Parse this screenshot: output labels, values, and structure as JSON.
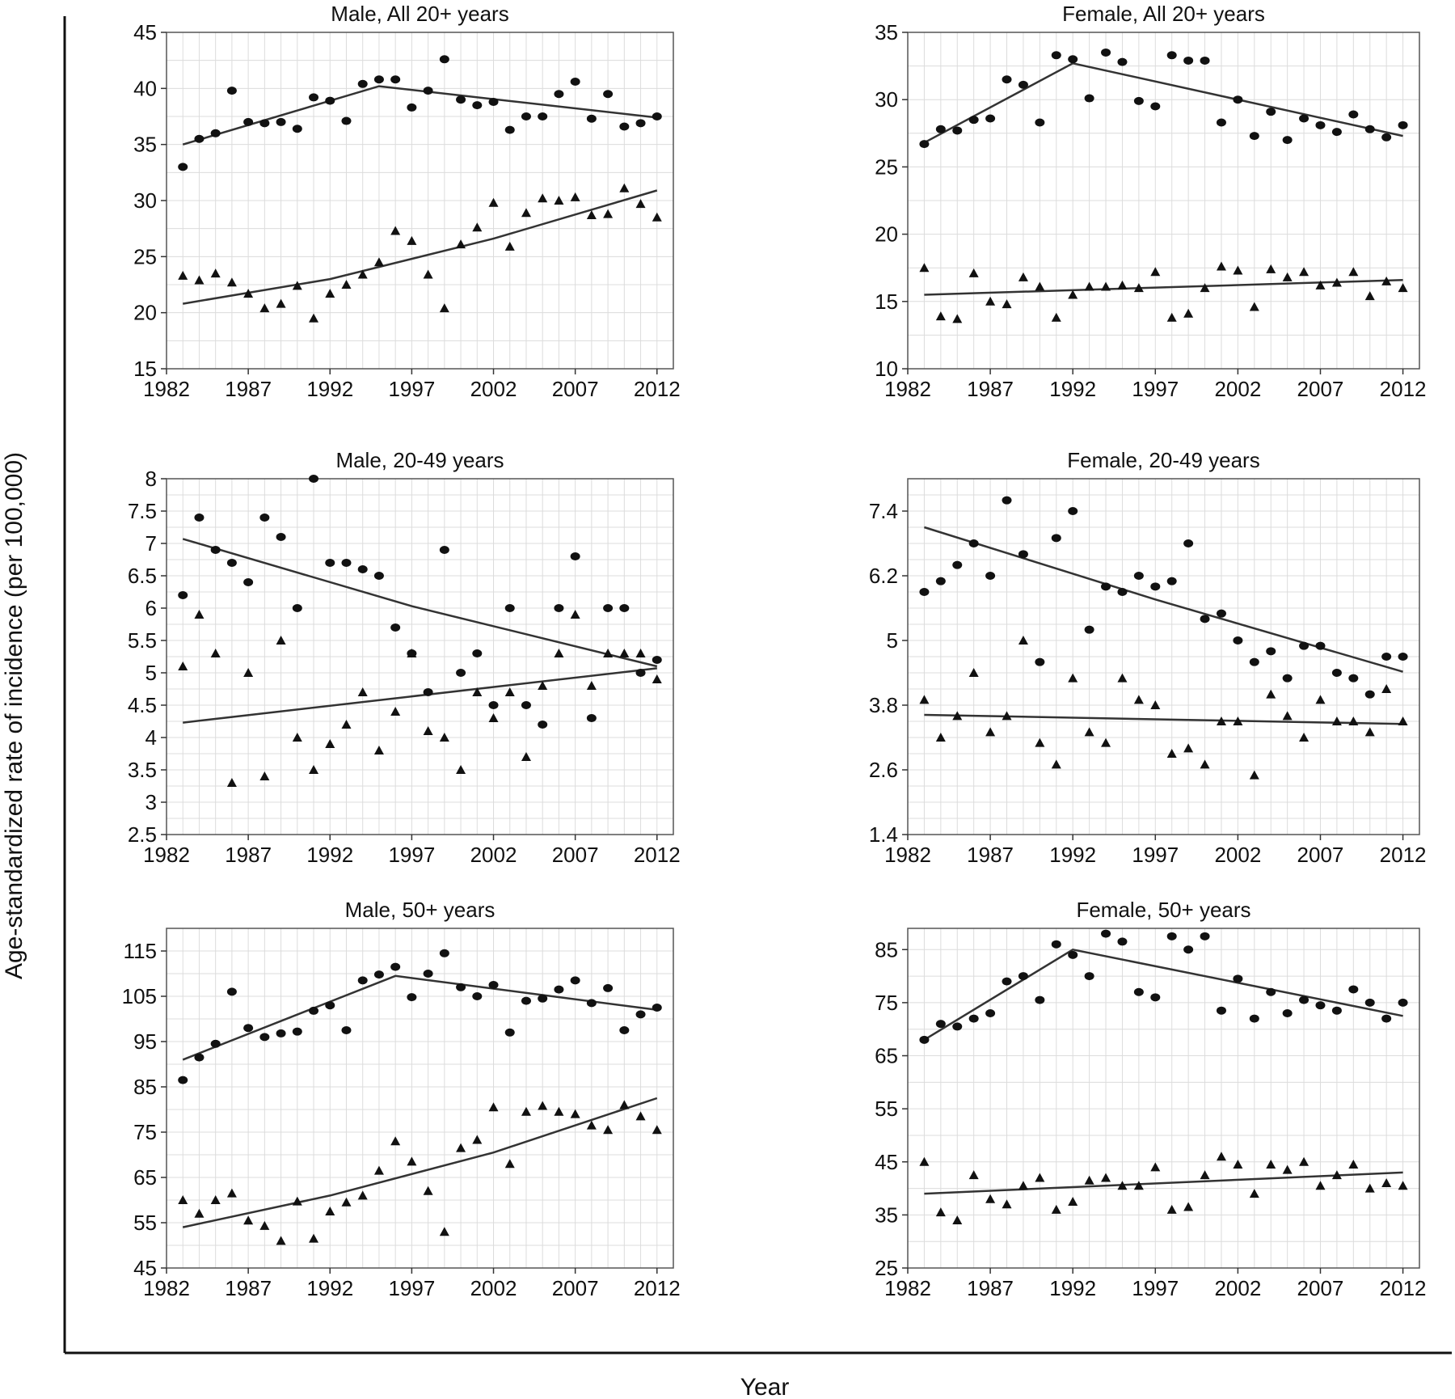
{
  "figure": {
    "ylabel": "Age-standardized rate of incidence (per 100,000)",
    "xlabel": "Year"
  },
  "chart_data": [
    {
      "type": "scatter",
      "title": "Male, All 20+ years",
      "xlim": [
        1982,
        2013
      ],
      "ylim": [
        15,
        45
      ],
      "xticks": [
        "1982",
        "1987",
        "1992",
        "1997",
        "2002",
        "2007",
        "2012"
      ],
      "yticks": [
        "15",
        "20",
        "25",
        "30",
        "35",
        "40",
        "45"
      ],
      "yminor": 2.5,
      "grid": true,
      "series": [
        {
          "marker": "circle",
          "x": [
            1983,
            1984,
            1985,
            1986,
            1987,
            1988,
            1989,
            1990,
            1991,
            1992,
            1993,
            1994,
            1995,
            1996,
            1997,
            1998,
            1999,
            2000,
            2001,
            2002,
            2003,
            2004,
            2005,
            2006,
            2007,
            2008,
            2009,
            2010,
            2011,
            2012
          ],
          "y": [
            33.0,
            35.5,
            36.0,
            39.8,
            37.0,
            36.9,
            37.0,
            36.4,
            39.2,
            38.9,
            37.1,
            40.4,
            40.8,
            40.8,
            38.3,
            39.8,
            42.6,
            39.0,
            38.5,
            38.8,
            36.3,
            37.5,
            37.5,
            39.5,
            40.6,
            37.3,
            39.5,
            36.6,
            36.9,
            37.5
          ]
        },
        {
          "marker": "triangle",
          "x": [
            1983,
            1984,
            1985,
            1986,
            1987,
            1988,
            1989,
            1990,
            1991,
            1992,
            1993,
            1994,
            1995,
            1996,
            1997,
            1998,
            1999,
            2000,
            2001,
            2002,
            2003,
            2004,
            2005,
            2006,
            2007,
            2008,
            2009,
            2010,
            2011,
            2012
          ],
          "y": [
            23.3,
            22.9,
            23.5,
            22.7,
            21.7,
            20.4,
            20.8,
            22.4,
            19.5,
            21.7,
            22.5,
            23.4,
            24.5,
            27.3,
            26.4,
            23.4,
            20.4,
            26.1,
            27.6,
            29.8,
            25.9,
            28.9,
            30.2,
            30.0,
            30.3,
            28.7,
            28.8,
            31.1,
            29.7,
            28.5
          ]
        }
      ],
      "fits": [
        {
          "x": [
            1983,
            1995,
            2012
          ],
          "y": [
            35.0,
            40.2,
            37.4
          ]
        },
        {
          "x": [
            1983,
            1992,
            2002,
            2012
          ],
          "y": [
            20.8,
            23.0,
            26.6,
            30.9
          ]
        }
      ]
    },
    {
      "type": "scatter",
      "title": "Female, All 20+ years",
      "xlim": [
        1982,
        2013
      ],
      "ylim": [
        10,
        35
      ],
      "xticks": [
        "1982",
        "1987",
        "1992",
        "1997",
        "2002",
        "2007",
        "2012"
      ],
      "yticks": [
        "10",
        "15",
        "20",
        "25",
        "30",
        "35"
      ],
      "yminor": 2.5,
      "grid": true,
      "series": [
        {
          "marker": "circle",
          "x": [
            1983,
            1984,
            1985,
            1986,
            1987,
            1988,
            1989,
            1990,
            1991,
            1992,
            1993,
            1994,
            1995,
            1996,
            1997,
            1998,
            1999,
            2000,
            2001,
            2002,
            2003,
            2004,
            2005,
            2006,
            2007,
            2008,
            2009,
            2010,
            2011,
            2012
          ],
          "y": [
            26.7,
            27.8,
            27.7,
            28.5,
            28.6,
            31.5,
            31.1,
            28.3,
            33.3,
            33.0,
            30.1,
            33.5,
            32.8,
            29.9,
            29.5,
            33.3,
            32.9,
            32.9,
            28.3,
            30.0,
            27.3,
            29.1,
            27.0,
            28.6,
            28.1,
            27.6,
            28.9,
            27.8,
            27.2,
            28.1
          ]
        },
        {
          "marker": "triangle",
          "x": [
            1983,
            1984,
            1985,
            1986,
            1987,
            1988,
            1989,
            1990,
            1991,
            1992,
            1993,
            1994,
            1995,
            1996,
            1997,
            1998,
            1999,
            2000,
            2001,
            2002,
            2003,
            2004,
            2005,
            2006,
            2007,
            2008,
            2009,
            2010,
            2011,
            2012
          ],
          "y": [
            17.5,
            13.9,
            13.7,
            17.1,
            15.0,
            14.8,
            16.8,
            16.1,
            13.8,
            15.5,
            16.1,
            16.1,
            16.2,
            16.0,
            17.2,
            13.8,
            14.1,
            16.0,
            17.6,
            17.3,
            14.6,
            17.4,
            16.8,
            17.2,
            16.2,
            16.4,
            17.2,
            15.4,
            16.5,
            16.0
          ]
        }
      ],
      "fits": [
        {
          "x": [
            1983,
            1992,
            2012
          ],
          "y": [
            26.8,
            32.7,
            27.3
          ]
        },
        {
          "x": [
            1983,
            2012
          ],
          "y": [
            15.5,
            16.6
          ]
        }
      ]
    },
    {
      "type": "scatter",
      "title": "Male, 20-49 years",
      "xlim": [
        1982,
        2013
      ],
      "ylim": [
        2.5,
        8
      ],
      "xticks": [
        "1982",
        "1987",
        "1992",
        "1997",
        "2002",
        "2007",
        "2012"
      ],
      "yticks": [
        "2.5",
        "3",
        "3.5",
        "4",
        "4.5",
        "5",
        "5.5",
        "6",
        "6.5",
        "7",
        "7.5",
        "8"
      ],
      "yminor": 0.25,
      "grid": true,
      "series": [
        {
          "marker": "circle",
          "x": [
            1983,
            1984,
            1985,
            1986,
            1987,
            1988,
            1989,
            1990,
            1991,
            1992,
            1993,
            1994,
            1995,
            1996,
            1997,
            1998,
            1999,
            2000,
            2001,
            2002,
            2003,
            2004,
            2005,
            2006,
            2007,
            2008,
            2009,
            2010,
            2011,
            2012
          ],
          "y": [
            6.2,
            7.4,
            6.9,
            6.7,
            6.4,
            7.4,
            7.1,
            6.0,
            8.0,
            6.7,
            6.7,
            6.6,
            6.5,
            5.7,
            5.3,
            4.7,
            6.9,
            5.0,
            5.3,
            4.5,
            6.0,
            4.5,
            4.2,
            6.0,
            6.8,
            4.3,
            6.0,
            6.0,
            5.0,
            5.2
          ]
        },
        {
          "marker": "triangle",
          "x": [
            1983,
            1984,
            1985,
            1986,
            1987,
            1988,
            1989,
            1990,
            1991,
            1992,
            1993,
            1994,
            1995,
            1996,
            1997,
            1998,
            1999,
            2000,
            2001,
            2002,
            2003,
            2004,
            2005,
            2006,
            2007,
            2008,
            2009,
            2010,
            2011,
            2012
          ],
          "y": [
            5.1,
            5.9,
            5.3,
            3.3,
            5.0,
            3.4,
            5.5,
            4.0,
            3.5,
            3.9,
            4.2,
            4.7,
            3.8,
            4.4,
            5.3,
            4.1,
            4.0,
            3.5,
            4.7,
            4.3,
            4.7,
            3.7,
            4.8,
            5.3,
            5.9,
            4.8,
            5.3,
            5.3,
            5.3,
            4.9
          ]
        }
      ],
      "fits": [
        {
          "x": [
            1983,
            1997,
            2012
          ],
          "y": [
            7.07,
            6.03,
            5.1
          ]
        },
        {
          "x": [
            1983,
            2012
          ],
          "y": [
            4.23,
            5.07
          ]
        }
      ]
    },
    {
      "type": "scatter",
      "title": "Female, 20-49 years",
      "xlim": [
        1982,
        2013
      ],
      "ylim": [
        1.4,
        8.0
      ],
      "xticks": [
        "1982",
        "1987",
        "1992",
        "1997",
        "2002",
        "2007",
        "2012"
      ],
      "yticks": [
        "1.4",
        "2.6",
        "3.8",
        "5",
        "6.2",
        "7.4"
      ],
      "yminor": 0.3,
      "grid": true,
      "series": [
        {
          "marker": "circle",
          "x": [
            1983,
            1984,
            1985,
            1986,
            1987,
            1988,
            1989,
            1990,
            1991,
            1992,
            1993,
            1994,
            1995,
            1996,
            1997,
            1998,
            1999,
            2000,
            2001,
            2002,
            2003,
            2004,
            2005,
            2006,
            2007,
            2008,
            2009,
            2010,
            2011,
            2012
          ],
          "y": [
            5.9,
            6.1,
            6.4,
            6.8,
            6.2,
            7.6,
            6.6,
            4.6,
            6.9,
            7.4,
            5.2,
            6.0,
            5.9,
            6.2,
            6.0,
            6.1,
            6.8,
            5.4,
            5.5,
            5.0,
            4.6,
            4.8,
            4.3,
            4.9,
            4.9,
            4.4,
            4.3,
            4.0,
            4.7,
            4.7
          ]
        },
        {
          "marker": "triangle",
          "x": [
            1983,
            1984,
            1985,
            1986,
            1987,
            1988,
            1989,
            1990,
            1991,
            1992,
            1993,
            1994,
            1995,
            1996,
            1997,
            1998,
            1999,
            2000,
            2001,
            2002,
            2003,
            2004,
            2005,
            2006,
            2007,
            2008,
            2009,
            2010,
            2011,
            2012
          ],
          "y": [
            3.9,
            3.2,
            3.6,
            4.4,
            3.3,
            3.6,
            5.0,
            3.1,
            2.7,
            4.3,
            3.3,
            3.1,
            4.3,
            3.9,
            3.8,
            2.9,
            3.0,
            2.7,
            3.5,
            3.5,
            2.5,
            4.0,
            3.6,
            3.2,
            3.9,
            3.5,
            3.5,
            3.3,
            4.1,
            3.5
          ]
        }
      ],
      "fits": [
        {
          "x": [
            1983,
            1997,
            2012
          ],
          "y": [
            7.1,
            5.76,
            4.42
          ]
        },
        {
          "x": [
            1983,
            2012
          ],
          "y": [
            3.62,
            3.45
          ]
        }
      ]
    },
    {
      "type": "scatter",
      "title": "Male, 50+ years",
      "xlim": [
        1982,
        2013
      ],
      "ylim": [
        45,
        120
      ],
      "xticks": [
        "1982",
        "1987",
        "1992",
        "1997",
        "2002",
        "2007",
        "2012"
      ],
      "yticks": [
        "45",
        "55",
        "65",
        "75",
        "85",
        "95",
        "105",
        "115"
      ],
      "yminor": 5,
      "grid": true,
      "series": [
        {
          "marker": "circle",
          "x": [
            1983,
            1984,
            1985,
            1986,
            1987,
            1988,
            1989,
            1990,
            1991,
            1992,
            1993,
            1994,
            1995,
            1996,
            1997,
            1998,
            1999,
            2000,
            2001,
            2002,
            2003,
            2004,
            2005,
            2006,
            2007,
            2008,
            2009,
            2010,
            2011,
            2012
          ],
          "y": [
            86.5,
            91.5,
            94.5,
            106.0,
            98.0,
            96.0,
            96.8,
            97.2,
            101.8,
            103.0,
            97.5,
            108.5,
            109.8,
            111.5,
            104.8,
            110.0,
            114.5,
            107.0,
            105.0,
            107.5,
            97.0,
            104.0,
            104.5,
            106.5,
            108.5,
            103.5,
            106.8,
            97.5,
            101.0,
            102.5
          ]
        },
        {
          "marker": "triangle",
          "x": [
            1983,
            1984,
            1985,
            1986,
            1987,
            1988,
            1989,
            1990,
            1991,
            1992,
            1993,
            1994,
            1995,
            1996,
            1997,
            1998,
            1999,
            2000,
            2001,
            2002,
            2003,
            2004,
            2005,
            2006,
            2007,
            2008,
            2009,
            2010,
            2011,
            2012
          ],
          "y": [
            60.0,
            57.0,
            60.0,
            61.5,
            55.5,
            54.3,
            51.0,
            59.7,
            51.5,
            57.5,
            59.5,
            61.0,
            66.5,
            73.0,
            68.5,
            62.0,
            53.0,
            71.5,
            73.3,
            80.5,
            68.0,
            79.5,
            80.8,
            79.5,
            79.0,
            76.5,
            75.5,
            81.0,
            78.5,
            75.5
          ]
        }
      ],
      "fits": [
        {
          "x": [
            1983,
            1996,
            2012
          ],
          "y": [
            91.0,
            109.5,
            102.0
          ]
        },
        {
          "x": [
            1983,
            1992,
            2002,
            2012
          ],
          "y": [
            54.0,
            61.0,
            70.5,
            82.5
          ]
        }
      ]
    },
    {
      "type": "scatter",
      "title": "Female, 50+ years",
      "xlim": [
        1982,
        2013
      ],
      "ylim": [
        25,
        89
      ],
      "xticks": [
        "1982",
        "1987",
        "1992",
        "1997",
        "2002",
        "2007",
        "2012"
      ],
      "yticks": [
        "25",
        "35",
        "45",
        "55",
        "65",
        "75",
        "85"
      ],
      "yminor": 5,
      "grid": true,
      "series": [
        {
          "marker": "circle",
          "x": [
            1983,
            1984,
            1985,
            1986,
            1987,
            1988,
            1989,
            1990,
            1991,
            1992,
            1993,
            1994,
            1995,
            1996,
            1997,
            1998,
            1999,
            2000,
            2001,
            2002,
            2003,
            2004,
            2005,
            2006,
            2007,
            2008,
            2009,
            2010,
            2011,
            2012
          ],
          "y": [
            68.0,
            71.0,
            70.5,
            72.0,
            73.0,
            79.0,
            80.0,
            75.5,
            86.0,
            84.0,
            80.0,
            88.0,
            86.5,
            77.0,
            76.0,
            87.5,
            85.0,
            87.5,
            73.5,
            79.5,
            72.0,
            77.0,
            73.0,
            75.5,
            74.5,
            73.5,
            77.5,
            75.0,
            72.0,
            75.0
          ]
        },
        {
          "marker": "triangle",
          "x": [
            1983,
            1984,
            1985,
            1986,
            1987,
            1988,
            1989,
            1990,
            1991,
            1992,
            1993,
            1994,
            1995,
            1996,
            1997,
            1998,
            1999,
            2000,
            2001,
            2002,
            2003,
            2004,
            2005,
            2006,
            2007,
            2008,
            2009,
            2010,
            2011,
            2012
          ],
          "y": [
            45.0,
            35.5,
            34.0,
            42.5,
            38.0,
            37.0,
            40.5,
            42.0,
            36.0,
            37.5,
            41.5,
            42.0,
            40.5,
            40.5,
            44.0,
            36.0,
            36.5,
            42.5,
            46.0,
            44.5,
            39.0,
            44.5,
            43.5,
            45.0,
            40.5,
            42.5,
            44.5,
            40.0,
            41.0,
            40.5
          ]
        }
      ],
      "fits": [
        {
          "x": [
            1983,
            1992,
            2012
          ],
          "y": [
            68.0,
            85.0,
            72.5
          ]
        },
        {
          "x": [
            1983,
            2012
          ],
          "y": [
            39.0,
            43.0
          ]
        }
      ]
    }
  ]
}
